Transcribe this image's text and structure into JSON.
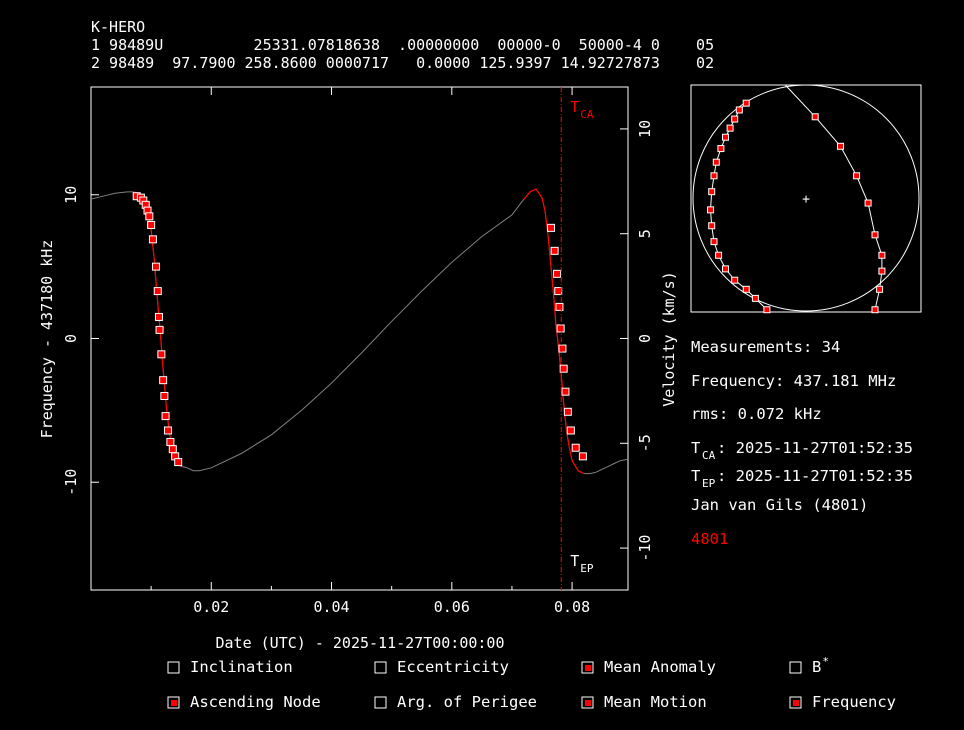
{
  "header": {
    "name": "K-HERO",
    "line1": "1 98489U          25331.07818638  .00000000  00000-0  50000-4 0    05",
    "line2": "2 98489  97.7900 258.8600 0000717   0.0000 125.9397 14.92727873    02"
  },
  "colors": {
    "background": "#000000",
    "foreground": "#ffffff",
    "accent": "#ff0000",
    "model_curve": "#808080"
  },
  "chart_data": [
    {
      "type": "scatter",
      "xlabel": "Date (UTC) - 2025-11-27T00:00:00",
      "ylabel": "Frequency - 437180 kHz",
      "y2label": "Velocity (km/s)",
      "xlim": [
        0.0,
        0.0893
      ],
      "ylim": [
        -17.5,
        17.5
      ],
      "y2lim": [
        -12.0,
        12.0
      ],
      "xticks": [
        "0.02",
        "0.04",
        "0.06",
        "0.08"
      ],
      "yticks": [
        "10",
        "0",
        "-10"
      ],
      "y2ticks": [
        "10",
        "5",
        "0",
        "-5",
        "-10"
      ],
      "markers": [
        {
          "label": "T",
          "sub": "CA",
          "x": 0.0782,
          "color": "#ff0000"
        },
        {
          "label": "T",
          "sub": "EP",
          "x": 0.0782,
          "color": "#ffffff"
        }
      ],
      "series": [
        {
          "style": "model",
          "x": [
            0.0,
            0.002,
            0.004,
            0.006,
            0.007,
            0.008,
            0.009,
            0.0095,
            0.01,
            0.0105,
            0.011,
            0.0115,
            0.012,
            0.0125,
            0.013,
            0.0135,
            0.014,
            0.015,
            0.016,
            0.017,
            0.018,
            0.02,
            0.025,
            0.03,
            0.035,
            0.04,
            0.045,
            0.05,
            0.055,
            0.06,
            0.065,
            0.07,
            0.072,
            0.073,
            0.074,
            0.075,
            0.0755,
            0.076,
            0.0765,
            0.077,
            0.0773,
            0.0776,
            0.0779,
            0.0782,
            0.0785,
            0.0788,
            0.0791,
            0.0795,
            0.08,
            0.081,
            0.082,
            0.083,
            0.084,
            0.085,
            0.086,
            0.087,
            0.088,
            0.0893
          ],
          "y": [
            9.7,
            9.9,
            10.1,
            10.2,
            10.2,
            10.1,
            9.5,
            8.8,
            7.6,
            5.6,
            3.0,
            0.5,
            -2.2,
            -4.6,
            -6.5,
            -7.7,
            -8.4,
            -8.9,
            -9.0,
            -9.2,
            -9.2,
            -9.0,
            -8.0,
            -6.7,
            -5.0,
            -3.1,
            -1.0,
            1.2,
            3.3,
            5.3,
            7.1,
            8.6,
            9.7,
            10.2,
            10.4,
            9.8,
            8.9,
            7.2,
            5.0,
            2.7,
            1.0,
            0.0,
            -1.2,
            -2.6,
            -4.1,
            -5.4,
            -6.5,
            -7.5,
            -8.5,
            -9.2,
            -9.4,
            -9.4,
            -9.3,
            -9.1,
            -8.9,
            -8.7,
            -8.5,
            -8.4
          ]
        },
        {
          "style": "fit",
          "x": [
            0.007,
            0.008,
            0.009,
            0.0095,
            0.01,
            0.0105,
            0.011,
            0.0115,
            0.012,
            0.0125,
            0.013,
            0.0135,
            0.014,
            0.015,
            0.072,
            0.073,
            0.074,
            0.075,
            0.0755,
            0.076,
            0.0765,
            0.077,
            0.0773,
            0.0776,
            0.0779,
            0.0782,
            0.0785,
            0.0788,
            0.0791,
            0.0795,
            0.08,
            0.081,
            0.082
          ],
          "y": [
            10.2,
            10.1,
            9.5,
            8.8,
            7.6,
            5.6,
            3.0,
            0.5,
            -2.2,
            -4.6,
            -6.5,
            -7.7,
            -8.4,
            -8.9,
            9.7,
            10.2,
            10.4,
            9.8,
            8.9,
            7.2,
            5.0,
            2.7,
            1.0,
            0.0,
            -1.2,
            -2.6,
            -4.1,
            -5.4,
            -6.5,
            -7.5,
            -8.5,
            -9.2,
            -9.4
          ],
          "break_after_index": 13
        },
        {
          "style": "measurements",
          "x": [
            0.0076,
            0.0083,
            0.0087,
            0.0091,
            0.0094,
            0.0097,
            0.01,
            0.0103,
            0.0108,
            0.0111,
            0.0113,
            0.0114,
            0.0117,
            0.012,
            0.0122,
            0.0124,
            0.0128,
            0.0132,
            0.0136,
            0.014,
            0.0145,
            0.0765,
            0.0771,
            0.0775,
            0.0777,
            0.0779,
            0.0781,
            0.0784,
            0.0786,
            0.0789,
            0.0793,
            0.0798,
            0.0806,
            0.0818
          ],
          "y": [
            9.9,
            9.8,
            9.6,
            9.3,
            8.9,
            8.5,
            7.9,
            6.9,
            5.0,
            3.3,
            1.5,
            0.6,
            -1.1,
            -2.9,
            -4.0,
            -5.4,
            -6.4,
            -7.2,
            -7.7,
            -8.2,
            -8.6,
            7.7,
            6.1,
            4.5,
            3.3,
            2.2,
            0.7,
            -0.7,
            -2.1,
            -3.7,
            -5.1,
            -6.4,
            -7.6,
            -8.2
          ]
        }
      ]
    },
    {
      "type": "scatter",
      "title": "",
      "center_marker": "+",
      "series": [
        {
          "style": "ground-track",
          "x": [
            0.24,
            0.21,
            0.19,
            0.17,
            0.15,
            0.13,
            0.11,
            0.1,
            0.09,
            0.085,
            0.09,
            0.1,
            0.12,
            0.15,
            0.19,
            0.24,
            0.28,
            0.33
          ],
          "y": [
            0.08,
            0.11,
            0.15,
            0.19,
            0.23,
            0.28,
            0.34,
            0.4,
            0.47,
            0.55,
            0.62,
            0.69,
            0.75,
            0.81,
            0.86,
            0.9,
            0.94,
            0.99
          ]
        },
        {
          "style": "ground-track",
          "x": [
            0.41,
            0.54,
            0.65,
            0.72,
            0.77,
            0.8,
            0.83,
            0.83,
            0.82,
            0.8
          ],
          "y": [
            0.0,
            0.14,
            0.27,
            0.4,
            0.52,
            0.66,
            0.75,
            0.82,
            0.9,
            0.99
          ]
        }
      ]
    }
  ],
  "info": {
    "measurements": "Measurements: 34",
    "frequency": "Frequency: 437.181 MHz",
    "rms": "rms: 0.072 kHz",
    "tca_label": "T",
    "tca_sub": "CA",
    "tca_value": ": 2025-11-27T01:52:35",
    "tep_label": "T",
    "tep_sub": "EP",
    "tep_value": ": 2025-11-27T01:52:35",
    "observer": "Jan van Gils (4801)",
    "site": "4801"
  },
  "options": [
    {
      "label": "Inclination",
      "checked": false
    },
    {
      "label": "Eccentricity",
      "checked": false
    },
    {
      "label": "Mean Anomaly",
      "checked": true
    },
    {
      "label": "B",
      "sup": "*",
      "checked": false
    },
    {
      "label": "Ascending Node",
      "checked": true
    },
    {
      "label": "Arg. of Perigee",
      "checked": false
    },
    {
      "label": "Mean Motion",
      "checked": true
    },
    {
      "label": "Frequency",
      "checked": true
    }
  ]
}
